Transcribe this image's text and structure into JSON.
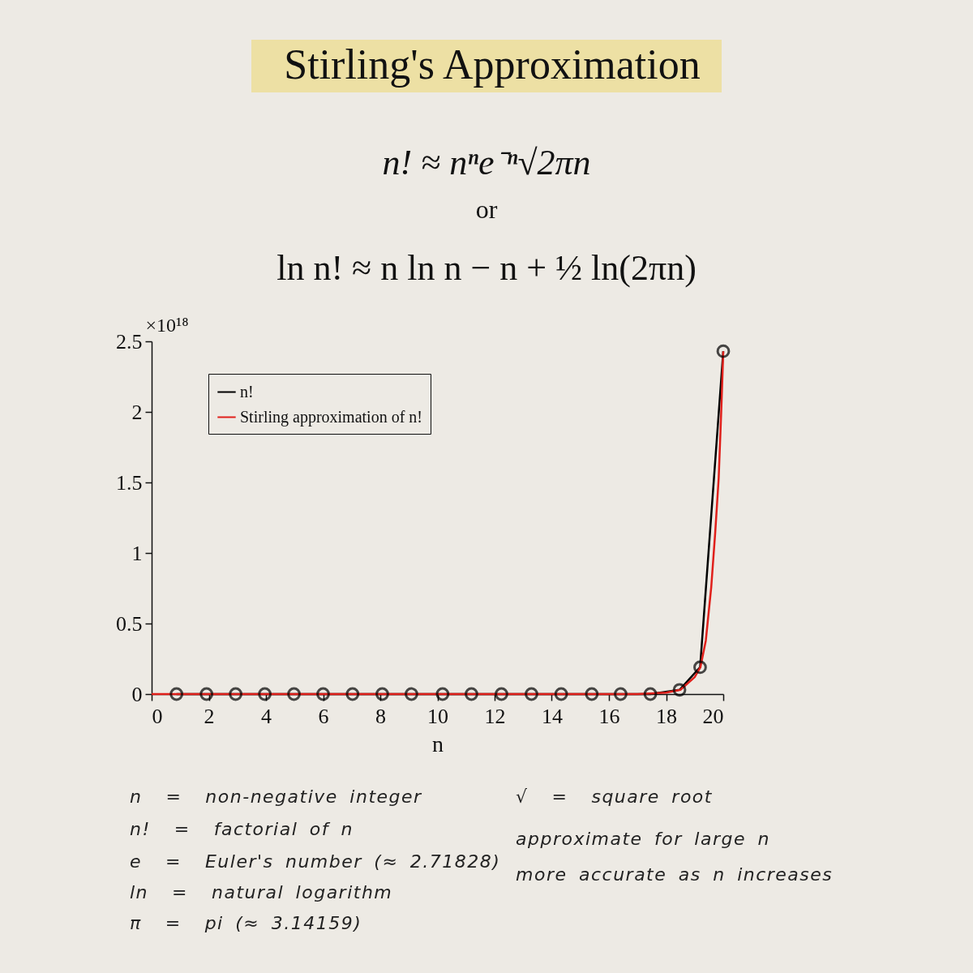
{
  "chart_data": {
    "type": "line",
    "title": "Stirling's Approximation",
    "subtitle": "n! ≈ nⁿe⁻ⁿ√2πn",
    "annotations": [
      "or",
      "ln n! ≈ n ln n − n + ½ ln(2πn)",
      "n  =  non-negative integer",
      "n!  =  factorial of n",
      "e  =  Euler's number (≈ 2.71828)",
      "ln  =  natural logarithm",
      "π  =  pi (≈ 3.14159)",
      "√  =  square root",
      "approximate for large n",
      "more accurate as n increases"
    ],
    "xlabel": "n",
    "series": [
      {
        "name": "n!",
        "color": "#000000",
        "marker": "circle",
        "x": [
          0.87,
          1.92,
          2.94,
          3.96,
          4.98,
          6.0,
          7.03,
          8.07,
          9.09,
          10.18,
          11.19,
          12.24,
          13.29,
          14.33,
          15.4,
          16.41,
          17.45,
          18.47,
          19.19,
          20
        ],
        "values": [
          0,
          0,
          0,
          0,
          0,
          0,
          0,
          0,
          0,
          0,
          0,
          0,
          0,
          0,
          0,
          0,
          0,
          0.03,
          0.19,
          2.43
        ]
      },
      {
        "name": "Stirling approximation of n!",
        "color": "#e0201b",
        "x": [
          0,
          2,
          4,
          6,
          8,
          10,
          12,
          14,
          16,
          17,
          18,
          18.5,
          19,
          19.2,
          19.39,
          19.58,
          19.72,
          19.84,
          19.93,
          20
        ],
        "values": [
          0,
          0,
          0,
          0,
          0,
          0,
          0,
          0,
          0,
          0,
          0.01,
          0.03,
          0.12,
          0.19,
          0.38,
          0.76,
          1.15,
          1.53,
          2.01,
          2.43
        ]
      }
    ],
    "xlim": [
      0,
      20
    ],
    "xticks": [
      0,
      2,
      4,
      6,
      8,
      10,
      12,
      14,
      16,
      18,
      20
    ],
    "ylabel": "×10¹⁸",
    "ylim": [
      0,
      2.5
    ],
    "yticks": [
      0,
      0.5,
      1,
      1.5,
      2,
      2.5
    ],
    "grid": false,
    "legend": "top left",
    "line_style": "solid"
  }
}
